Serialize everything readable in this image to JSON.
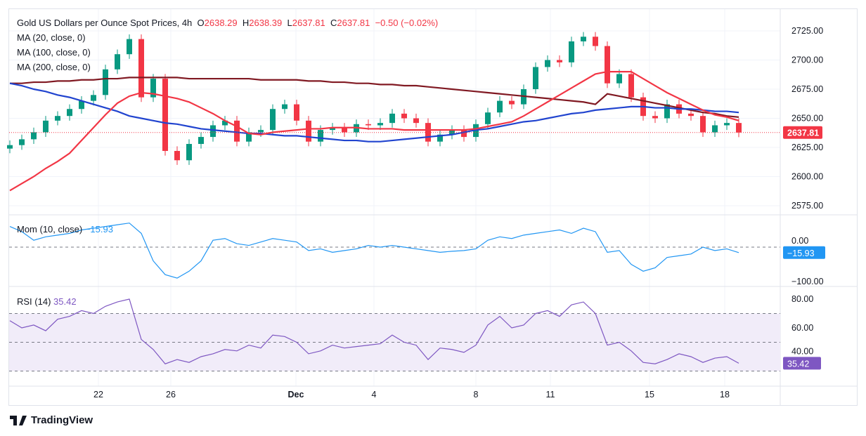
{
  "header": {
    "title": "Gold US Dollars per Ounce Spot Prices, 4h",
    "o_label": "O",
    "o": "2638.29",
    "h_label": "H",
    "h": "2638.39",
    "l_label": "L",
    "l": "2637.81",
    "c_label": "C",
    "c": "2637.81",
    "change": "−0.50 (−0.02%)"
  },
  "legend": {
    "ma20": "MA (20, close, 0)",
    "ma100": "MA (100, close, 0)",
    "ma200": "MA (200, close, 0)",
    "mom_label": "Mom (10, close)",
    "mom_value": "−15.93",
    "rsi_label": "RSI (14)",
    "rsi_value": "35.42"
  },
  "branding": "TradingView",
  "colors": {
    "up": "#089981",
    "down": "#f23645",
    "ma20": "#f23645",
    "ma100": "#2144cf",
    "ma200": "#801922",
    "mom": "#2196f3",
    "rsi": "#7e57c2",
    "rsi_band": "#f1ecf9"
  },
  "chart_data": [
    {
      "type": "candlestick",
      "title": "Gold US Dollars per Ounce Spot Prices, 4h",
      "x_ticks": [
        "22",
        "26",
        "Dec",
        "4",
        "8",
        "11",
        "15",
        "18"
      ],
      "y_ticks": [
        "2725.00",
        "2700.00",
        "2675.00",
        "2650.00",
        "2625.00",
        "2600.00",
        "2575.00"
      ],
      "ylim": [
        2567,
        2733
      ],
      "last_price": "2637.81",
      "close": [
        2627,
        2632,
        2638,
        2648,
        2652,
        2658,
        2665,
        2670,
        2692,
        2705,
        2718,
        2668,
        2684,
        2622,
        2614,
        2628,
        2634,
        2644,
        2648,
        2630,
        2638,
        2640,
        2658,
        2662,
        2648,
        2630,
        2640,
        2642,
        2638,
        2645,
        2644,
        2646,
        2654,
        2650,
        2646,
        2630,
        2636,
        2640,
        2634,
        2645,
        2655,
        2665,
        2662,
        2675,
        2694,
        2700,
        2698,
        2716,
        2720,
        2712,
        2680,
        2688,
        2668,
        2652,
        2650,
        2662,
        2654,
        2652,
        2638,
        2644,
        2646,
        2637.81
      ],
      "series": [
        {
          "name": "MA (20, close, 0)",
          "values": [
            2588,
            2594,
            2600,
            2607,
            2613,
            2620,
            2631,
            2642,
            2653,
            2663,
            2669,
            2672,
            2671,
            2669,
            2667,
            2664,
            2659,
            2654,
            2648,
            2643,
            2637,
            2636,
            2638,
            2639,
            2640,
            2641,
            2641,
            2642,
            2642,
            2642,
            2641,
            2641,
            2641,
            2640,
            2640,
            2640,
            2640,
            2640,
            2640,
            2641,
            2643,
            2645,
            2647,
            2652,
            2658,
            2664,
            2670,
            2676,
            2682,
            2688,
            2690,
            2690,
            2690,
            2684,
            2678,
            2672,
            2667,
            2662,
            2657,
            2653,
            2651,
            2648
          ]
        },
        {
          "name": "MA (100, close, 0)",
          "values": [
            2680,
            2678,
            2675,
            2673,
            2670,
            2668,
            2665,
            2662,
            2659,
            2656,
            2652,
            2650,
            2648,
            2646,
            2645,
            2643,
            2641,
            2640,
            2639,
            2638,
            2637,
            2637,
            2636,
            2635,
            2635,
            2634,
            2633,
            2632,
            2631,
            2631,
            2630,
            2630,
            2631,
            2632,
            2633,
            2634,
            2635,
            2636,
            2638,
            2640,
            2641,
            2643,
            2645,
            2647,
            2648,
            2650,
            2652,
            2654,
            2655,
            2657,
            2658,
            2659,
            2660,
            2660,
            2659,
            2659,
            2658,
            2658,
            2657,
            2656,
            2656,
            2655
          ]
        },
        {
          "name": "MA (200, close, 0)",
          "values": [
            2680,
            2680,
            2681,
            2681,
            2682,
            2682,
            2683,
            2683,
            2684,
            2684,
            2685,
            2685,
            2685,
            2685,
            2685,
            2684,
            2684,
            2684,
            2684,
            2684,
            2684,
            2683,
            2683,
            2683,
            2683,
            2682,
            2682,
            2681,
            2681,
            2680,
            2680,
            2679,
            2679,
            2678,
            2678,
            2677,
            2676,
            2675,
            2674,
            2673,
            2672,
            2671,
            2670,
            2669,
            2668,
            2667,
            2666,
            2665,
            2664,
            2662,
            2671,
            2669,
            2667,
            2665,
            2663,
            2661,
            2659,
            2657,
            2655,
            2654,
            2652,
            2651
          ]
        }
      ]
    },
    {
      "type": "line",
      "title": "Mom (10, close)",
      "y_ticks": [
        "0.00",
        "−100.00"
      ],
      "ylim": [
        -110,
        95
      ],
      "zero_line": true,
      "values": [
        60,
        45,
        20,
        30,
        35,
        40,
        50,
        55,
        60,
        65,
        70,
        40,
        -40,
        -80,
        -90,
        -70,
        -40,
        20,
        25,
        10,
        5,
        15,
        25,
        20,
        15,
        -10,
        -5,
        -15,
        -10,
        -5,
        5,
        0,
        5,
        0,
        -5,
        -10,
        -15,
        -12,
        -10,
        -5,
        20,
        30,
        25,
        35,
        40,
        45,
        50,
        40,
        55,
        45,
        -15,
        -10,
        -50,
        -70,
        -60,
        -30,
        -25,
        -20,
        0,
        -10,
        -5,
        -15.93
      ]
    },
    {
      "type": "line",
      "title": "RSI (14)",
      "y_ticks": [
        "80.00",
        "60.00",
        "40.00"
      ],
      "ylim": [
        20,
        88
      ],
      "band": [
        30,
        70
      ],
      "midline": 50,
      "values": [
        65,
        60,
        62,
        58,
        66,
        68,
        72,
        70,
        75,
        78,
        80,
        52,
        45,
        35,
        38,
        36,
        40,
        42,
        45,
        44,
        48,
        46,
        55,
        54,
        50,
        42,
        44,
        48,
        46,
        47,
        48,
        49,
        55,
        50,
        48,
        38,
        46,
        45,
        43,
        48,
        62,
        68,
        60,
        62,
        70,
        72,
        68,
        76,
        78,
        70,
        48,
        50,
        44,
        36,
        35,
        38,
        42,
        40,
        36,
        39,
        40,
        35.42
      ]
    }
  ]
}
